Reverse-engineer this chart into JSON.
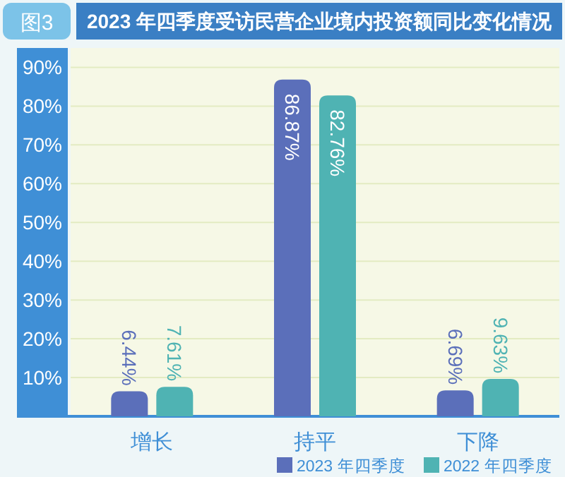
{
  "chart_data": {
    "type": "bar",
    "title": "2023 年四季度受访民营企业境内投资额同比变化情况",
    "annotations": [
      "图3"
    ],
    "categories": [
      "增长",
      "持平",
      "下降"
    ],
    "series": [
      {
        "name": "2023 年四季度",
        "color": "#5b6fba",
        "values": [
          6.44,
          86.87,
          6.69
        ],
        "value_labels": [
          "6.44%",
          "86.87%",
          "6.69%"
        ]
      },
      {
        "name": "2022 年四季度",
        "color": "#4fb3b3",
        "values": [
          7.61,
          82.76,
          9.63
        ],
        "value_labels": [
          "7.61%",
          "82.76%",
          "9.63%"
        ]
      }
    ],
    "ylim": [
      0,
      95
    ],
    "yticks": [
      {
        "value": 10,
        "label": "10%"
      },
      {
        "value": 20,
        "label": "20%"
      },
      {
        "value": 30,
        "label": "30%"
      },
      {
        "value": 40,
        "label": "40%"
      },
      {
        "value": 50,
        "label": "50%"
      },
      {
        "value": 60,
        "label": "60%"
      },
      {
        "value": 70,
        "label": "70%"
      },
      {
        "value": 80,
        "label": "80%"
      },
      {
        "value": 90,
        "label": "90%"
      }
    ],
    "grid": "y",
    "legend": "bottom right"
  }
}
